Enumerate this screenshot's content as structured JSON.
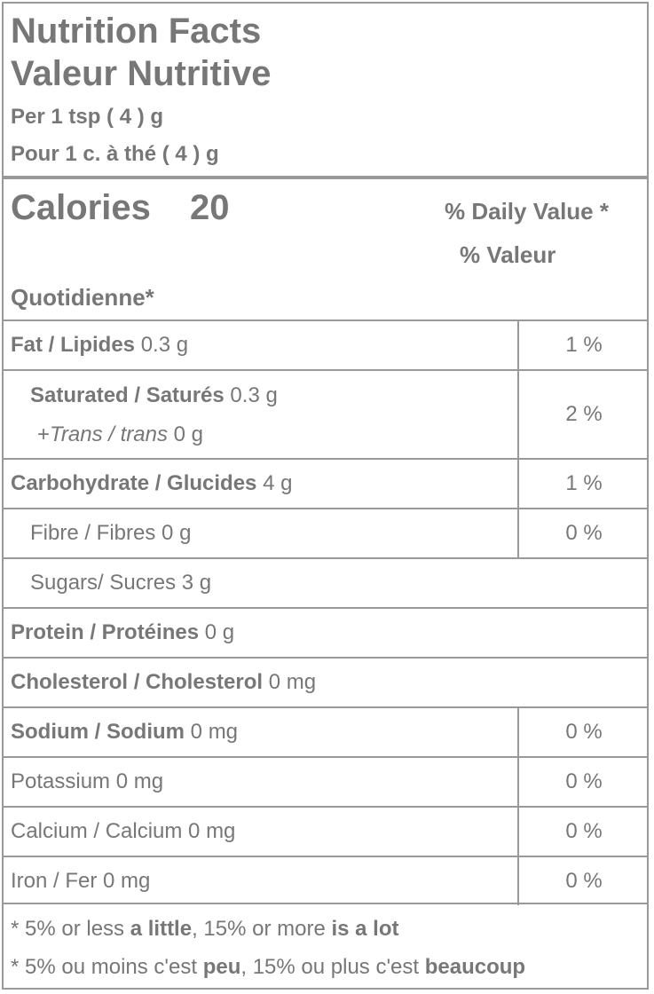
{
  "header": {
    "title": "Nutrition Facts",
    "title_fr": "Valeur Nutritive",
    "serving": "Per 1 tsp ( 4 ) g",
    "serving_fr": "Pour 1 c. à thé ( 4 ) g"
  },
  "calories": {
    "label": "Calories",
    "value": 20
  },
  "daily_value": {
    "line1": "% Daily Value *",
    "line2": "% Valeur",
    "line3": "Quotidienne*"
  },
  "rows": [
    {
      "label": "Fat / Lipides",
      "amount": "0.3 g",
      "dv": "1 %",
      "bold": true,
      "sub": false
    },
    {
      "label": "Saturated / Saturés",
      "amount": "0.3 g",
      "dv": "2 %",
      "bold": true,
      "sub": true,
      "trans_prefix": "+",
      "trans_label": "Trans / trans",
      "trans_amount": "0 g"
    },
    {
      "label": "Carbohydrate / Glucides",
      "amount": "4 g",
      "dv": "1 %",
      "bold": true,
      "sub": false
    },
    {
      "label": "Fibre / Fibres",
      "amount": "0 g",
      "dv": "0 %",
      "bold": false,
      "sub": true
    },
    {
      "label": "Sugars/ Sucres",
      "amount": "3 g",
      "bold": false,
      "sub": true
    },
    {
      "label": "Protein / Protéines",
      "amount": "0 g",
      "bold": true,
      "sub": false
    },
    {
      "label": "Cholesterol / Cholesterol",
      "amount": "0 mg",
      "bold": true,
      "sub": false
    },
    {
      "label": "Sodium / Sodium",
      "amount": "0 mg",
      "dv": "0 %",
      "bold": true,
      "sub": false
    },
    {
      "label": "Potassium",
      "amount": "0 mg",
      "dv": "0 %",
      "bold": false,
      "sub": false
    },
    {
      "label": "Calcium / Calcium",
      "amount": "0 mg",
      "dv": "0 %",
      "bold": false,
      "sub": false
    },
    {
      "label": "Iron / Fer",
      "amount": "0 mg",
      "dv": "0 %",
      "bold": false,
      "sub": false
    }
  ],
  "footnotes": [
    [
      {
        "text": "* 5% or less ",
        "bold": false
      },
      {
        "text": "a little",
        "bold": true
      },
      {
        "text": ", 15% or more ",
        "bold": false
      },
      {
        "text": "is a lot",
        "bold": true
      }
    ],
    [
      {
        "text": "* 5% ou moins c'est ",
        "bold": false
      },
      {
        "text": "peu",
        "bold": true
      },
      {
        "text": ", 15% ou plus c'est ",
        "bold": false
      },
      {
        "text": "beaucoup",
        "bold": true
      }
    ]
  ]
}
